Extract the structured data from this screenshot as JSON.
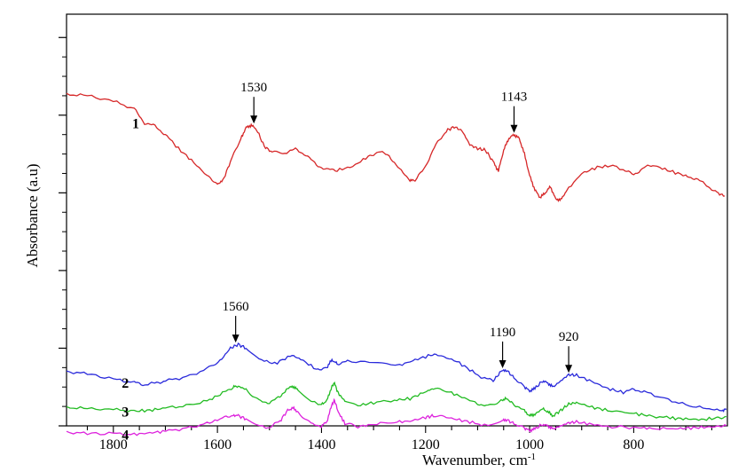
{
  "chart_data": {
    "type": "line",
    "title": "",
    "xlabel": "Wavenumber, cm",
    "xlabel_sup": "-1",
    "ylabel": "Absorbance (a.u)",
    "xlim": [
      1890,
      620
    ],
    "x_reversed": true,
    "ylim": [
      0,
      5.3
    ],
    "x_ticks": [
      1800,
      1600,
      1400,
      1200,
      1000,
      800
    ],
    "y_ticks_shown": false,
    "grid": false,
    "series": [
      {
        "name": "1",
        "color": "#d62728",
        "points": [
          [
            1890,
            4.27
          ],
          [
            1850,
            4.25
          ],
          [
            1800,
            4.18
          ],
          [
            1760,
            4.08
          ],
          [
            1740,
            3.9
          ],
          [
            1720,
            3.86
          ],
          [
            1700,
            3.75
          ],
          [
            1680,
            3.6
          ],
          [
            1650,
            3.42
          ],
          [
            1620,
            3.22
          ],
          [
            1600,
            3.12
          ],
          [
            1590,
            3.15
          ],
          [
            1575,
            3.4
          ],
          [
            1555,
            3.7
          ],
          [
            1545,
            3.84
          ],
          [
            1535,
            3.87
          ],
          [
            1525,
            3.82
          ],
          [
            1510,
            3.6
          ],
          [
            1495,
            3.52
          ],
          [
            1470,
            3.52
          ],
          [
            1450,
            3.56
          ],
          [
            1430,
            3.49
          ],
          [
            1410,
            3.36
          ],
          [
            1390,
            3.3
          ],
          [
            1370,
            3.29
          ],
          [
            1340,
            3.34
          ],
          [
            1310,
            3.47
          ],
          [
            1290,
            3.53
          ],
          [
            1270,
            3.48
          ],
          [
            1250,
            3.3
          ],
          [
            1230,
            3.17
          ],
          [
            1220,
            3.15
          ],
          [
            1200,
            3.35
          ],
          [
            1180,
            3.62
          ],
          [
            1160,
            3.8
          ],
          [
            1145,
            3.85
          ],
          [
            1130,
            3.8
          ],
          [
            1115,
            3.62
          ],
          [
            1100,
            3.57
          ],
          [
            1085,
            3.55
          ],
          [
            1070,
            3.4
          ],
          [
            1060,
            3.28
          ],
          [
            1050,
            3.55
          ],
          [
            1040,
            3.7
          ],
          [
            1030,
            3.75
          ],
          [
            1020,
            3.7
          ],
          [
            1010,
            3.5
          ],
          [
            1000,
            3.22
          ],
          [
            990,
            3.04
          ],
          [
            980,
            2.94
          ],
          [
            970,
            3.0
          ],
          [
            960,
            3.08
          ],
          [
            950,
            2.92
          ],
          [
            940,
            2.91
          ],
          [
            930,
            3.02
          ],
          [
            900,
            3.25
          ],
          [
            870,
            3.33
          ],
          [
            840,
            3.35
          ],
          [
            820,
            3.3
          ],
          [
            800,
            3.23
          ],
          [
            780,
            3.33
          ],
          [
            760,
            3.35
          ],
          [
            730,
            3.28
          ],
          [
            700,
            3.22
          ],
          [
            680,
            3.18
          ],
          [
            660,
            3.1
          ],
          [
            640,
            3.0
          ],
          [
            625,
            2.96
          ]
        ]
      },
      {
        "name": "2",
        "color": "#2a2adb",
        "points": [
          [
            1890,
            0.7
          ],
          [
            1850,
            0.67
          ],
          [
            1800,
            0.6
          ],
          [
            1760,
            0.56
          ],
          [
            1740,
            0.53
          ],
          [
            1720,
            0.55
          ],
          [
            1700,
            0.58
          ],
          [
            1660,
            0.63
          ],
          [
            1620,
            0.73
          ],
          [
            1595,
            0.85
          ],
          [
            1575,
            1.0
          ],
          [
            1560,
            1.05
          ],
          [
            1545,
            1.0
          ],
          [
            1520,
            0.86
          ],
          [
            1490,
            0.8
          ],
          [
            1460,
            0.9
          ],
          [
            1440,
            0.86
          ],
          [
            1410,
            0.73
          ],
          [
            1390,
            0.75
          ],
          [
            1380,
            0.85
          ],
          [
            1370,
            0.8
          ],
          [
            1350,
            0.83
          ],
          [
            1300,
            0.82
          ],
          [
            1250,
            0.78
          ],
          [
            1220,
            0.85
          ],
          [
            1190,
            0.91
          ],
          [
            1170,
            0.9
          ],
          [
            1140,
            0.83
          ],
          [
            1110,
            0.7
          ],
          [
            1090,
            0.62
          ],
          [
            1070,
            0.58
          ],
          [
            1055,
            0.7
          ],
          [
            1045,
            0.72
          ],
          [
            1030,
            0.62
          ],
          [
            1010,
            0.5
          ],
          [
            1000,
            0.45
          ],
          [
            990,
            0.48
          ],
          [
            975,
            0.58
          ],
          [
            965,
            0.55
          ],
          [
            955,
            0.5
          ],
          [
            940,
            0.58
          ],
          [
            925,
            0.66
          ],
          [
            910,
            0.65
          ],
          [
            880,
            0.57
          ],
          [
            850,
            0.48
          ],
          [
            820,
            0.43
          ],
          [
            800,
            0.47
          ],
          [
            780,
            0.44
          ],
          [
            740,
            0.35
          ],
          [
            700,
            0.27
          ],
          [
            660,
            0.22
          ],
          [
            630,
            0.2
          ],
          [
            622,
            0.22
          ]
        ]
      },
      {
        "name": "3",
        "color": "#22bb22",
        "points": [
          [
            1890,
            0.24
          ],
          [
            1850,
            0.22
          ],
          [
            1800,
            0.21
          ],
          [
            1760,
            0.19
          ],
          [
            1730,
            0.2
          ],
          [
            1700,
            0.23
          ],
          [
            1660,
            0.26
          ],
          [
            1620,
            0.32
          ],
          [
            1590,
            0.42
          ],
          [
            1570,
            0.5
          ],
          [
            1560,
            0.51
          ],
          [
            1545,
            0.47
          ],
          [
            1520,
            0.32
          ],
          [
            1500,
            0.3
          ],
          [
            1480,
            0.37
          ],
          [
            1465,
            0.48
          ],
          [
            1455,
            0.51
          ],
          [
            1445,
            0.46
          ],
          [
            1420,
            0.31
          ],
          [
            1400,
            0.28
          ],
          [
            1390,
            0.32
          ],
          [
            1380,
            0.51
          ],
          [
            1375,
            0.55
          ],
          [
            1368,
            0.42
          ],
          [
            1355,
            0.32
          ],
          [
            1330,
            0.26
          ],
          [
            1300,
            0.3
          ],
          [
            1260,
            0.33
          ],
          [
            1230,
            0.35
          ],
          [
            1200,
            0.44
          ],
          [
            1185,
            0.48
          ],
          [
            1160,
            0.45
          ],
          [
            1130,
            0.37
          ],
          [
            1100,
            0.29
          ],
          [
            1080,
            0.25
          ],
          [
            1055,
            0.33
          ],
          [
            1045,
            0.35
          ],
          [
            1030,
            0.28
          ],
          [
            1010,
            0.19
          ],
          [
            1000,
            0.13
          ],
          [
            990,
            0.15
          ],
          [
            975,
            0.22
          ],
          [
            965,
            0.18
          ],
          [
            955,
            0.13
          ],
          [
            940,
            0.2
          ],
          [
            925,
            0.28
          ],
          [
            910,
            0.3
          ],
          [
            880,
            0.24
          ],
          [
            850,
            0.2
          ],
          [
            800,
            0.16
          ],
          [
            770,
            0.13
          ],
          [
            730,
            0.1
          ],
          [
            700,
            0.09
          ],
          [
            670,
            0.08
          ],
          [
            640,
            0.1
          ],
          [
            622,
            0.12
          ]
        ]
      },
      {
        "name": "4",
        "color": "#dd22dd",
        "points": [
          [
            1890,
            -0.08
          ],
          [
            1850,
            -0.1
          ],
          [
            1800,
            -0.1
          ],
          [
            1760,
            -0.11
          ],
          [
            1730,
            -0.09
          ],
          [
            1700,
            -0.07
          ],
          [
            1660,
            -0.03
          ],
          [
            1620,
            0.03
          ],
          [
            1590,
            0.1
          ],
          [
            1570,
            0.14
          ],
          [
            1560,
            0.13
          ],
          [
            1545,
            0.09
          ],
          [
            1520,
            0.0
          ],
          [
            1500,
            -0.02
          ],
          [
            1480,
            0.06
          ],
          [
            1465,
            0.2
          ],
          [
            1455,
            0.23
          ],
          [
            1445,
            0.18
          ],
          [
            1420,
            0.02
          ],
          [
            1400,
            0.0
          ],
          [
            1390,
            0.05
          ],
          [
            1380,
            0.27
          ],
          [
            1375,
            0.33
          ],
          [
            1368,
            0.18
          ],
          [
            1355,
            0.03
          ],
          [
            1330,
            -0.01
          ],
          [
            1300,
            0.02
          ],
          [
            1260,
            0.05
          ],
          [
            1230,
            0.06
          ],
          [
            1200,
            0.11
          ],
          [
            1185,
            0.13
          ],
          [
            1160,
            0.11
          ],
          [
            1130,
            0.07
          ],
          [
            1100,
            0.03
          ],
          [
            1080,
            0.0
          ],
          [
            1055,
            0.06
          ],
          [
            1045,
            0.08
          ],
          [
            1030,
            0.03
          ],
          [
            1010,
            -0.03
          ],
          [
            1000,
            -0.06
          ],
          [
            990,
            -0.04
          ],
          [
            975,
            0.02
          ],
          [
            965,
            0.0
          ],
          [
            955,
            -0.04
          ],
          [
            940,
            0.0
          ],
          [
            925,
            0.04
          ],
          [
            910,
            0.05
          ],
          [
            880,
            0.02
          ],
          [
            850,
            -0.01
          ],
          [
            800,
            -0.02
          ],
          [
            770,
            -0.03
          ],
          [
            730,
            -0.04
          ],
          [
            700,
            -0.03
          ],
          [
            670,
            -0.02
          ],
          [
            640,
            -0.01
          ],
          [
            622,
            0.0
          ]
        ]
      }
    ],
    "annotations": [
      {
        "text": "1530",
        "x": 1530,
        "y": 3.87
      },
      {
        "text": "1143",
        "x": 1030,
        "y": 3.75
      },
      {
        "text": "1560",
        "x": 1565,
        "y": 1.05
      },
      {
        "text": "1190",
        "x": 1052,
        "y": 0.72
      },
      {
        "text": "920",
        "x": 925,
        "y": 0.66
      }
    ]
  }
}
